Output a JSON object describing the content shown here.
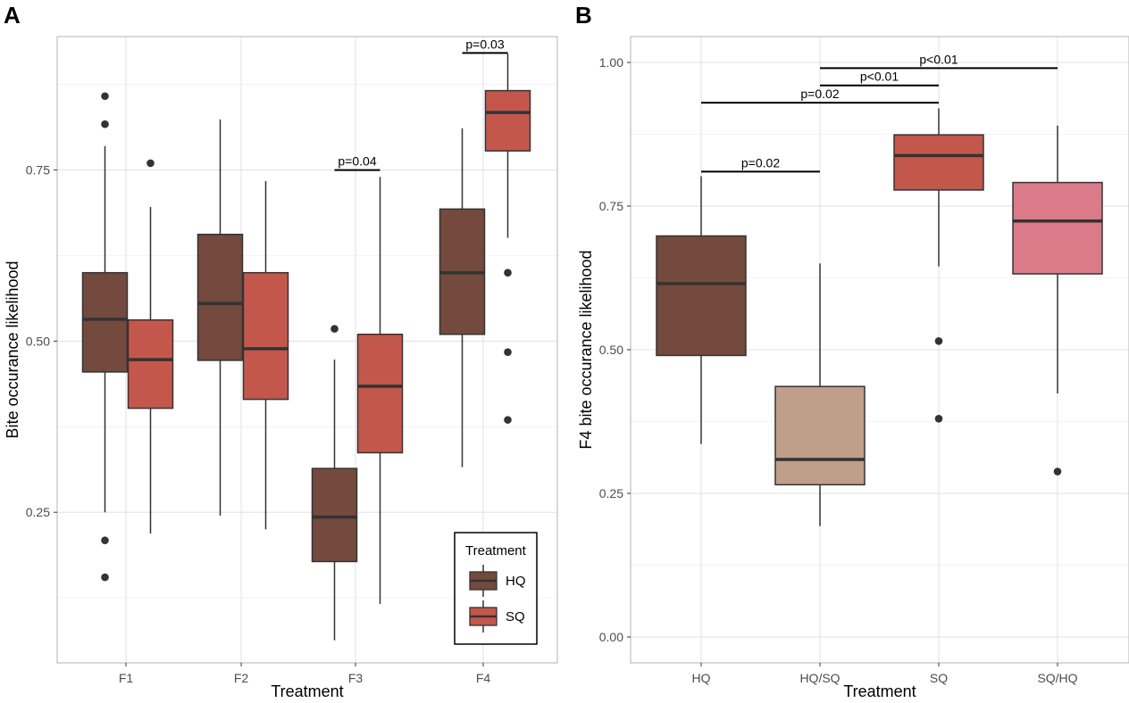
{
  "chart_data": [
    {
      "type": "boxplot",
      "panel_label": "A",
      "xlabel": "Treatment",
      "ylabel": "Bite occurance likelihood",
      "ylim": [
        0.03,
        0.945
      ],
      "yticks": [
        0.25,
        0.5,
        0.75
      ],
      "ytick_labels": [
        "0.25",
        "0.50",
        "0.75"
      ],
      "categories": [
        "F1",
        "F2",
        "F3",
        "F4"
      ],
      "grid": true,
      "legend": {
        "title": "Treatment",
        "position": "bottom-right",
        "entries": [
          {
            "label": "HQ",
            "color": "#734a3d"
          },
          {
            "label": "SQ",
            "color": "#c4574c"
          }
        ]
      },
      "boxes": [
        {
          "name": "F1-HQ",
          "category": "F1",
          "group": "HQ",
          "color": "#734a3d",
          "whisker_low": 0.25,
          "q1": 0.455,
          "median": 0.532,
          "q3": 0.6,
          "whisker_high": 0.785,
          "outliers": [
            0.858,
            0.817,
            0.209,
            0.155
          ]
        },
        {
          "name": "F1-SQ",
          "category": "F1",
          "group": "SQ",
          "color": "#c4574c",
          "whisker_low": 0.219,
          "q1": 0.402,
          "median": 0.473,
          "q3": 0.531,
          "whisker_high": 0.696,
          "outliers": [
            0.76
          ]
        },
        {
          "name": "F2-HQ",
          "category": "F2",
          "group": "HQ",
          "color": "#734a3d",
          "whisker_low": 0.245,
          "q1": 0.472,
          "median": 0.555,
          "q3": 0.656,
          "whisker_high": 0.824,
          "outliers": []
        },
        {
          "name": "F2-SQ",
          "category": "F2",
          "group": "SQ",
          "color": "#c4574c",
          "whisker_low": 0.225,
          "q1": 0.415,
          "median": 0.489,
          "q3": 0.6,
          "whisker_high": 0.734,
          "outliers": []
        },
        {
          "name": "F3-HQ",
          "category": "F3",
          "group": "HQ",
          "color": "#734a3d",
          "whisker_low": 0.063,
          "q1": 0.178,
          "median": 0.243,
          "q3": 0.314,
          "whisker_high": 0.473,
          "outliers": [
            0.518
          ]
        },
        {
          "name": "F3-SQ",
          "category": "F3",
          "group": "SQ",
          "color": "#c4574c",
          "whisker_low": 0.116,
          "q1": 0.337,
          "median": 0.434,
          "q3": 0.51,
          "whisker_high": 0.74,
          "outliers": []
        },
        {
          "name": "F4-HQ",
          "category": "F4",
          "group": "HQ",
          "color": "#734a3d",
          "whisker_low": 0.316,
          "q1": 0.51,
          "median": 0.6,
          "q3": 0.693,
          "whisker_high": 0.811,
          "outliers": []
        },
        {
          "name": "F4-SQ",
          "category": "F4",
          "group": "SQ",
          "color": "#c4574c",
          "whisker_low": 0.651,
          "q1": 0.778,
          "median": 0.834,
          "q3": 0.866,
          "whisker_high": 0.92,
          "outliers": [
            0.6,
            0.484,
            0.385
          ]
        }
      ],
      "annotations": [
        {
          "label": "p=0.04",
          "from": "F3-HQ",
          "to": "F3-SQ",
          "y": 0.75
        },
        {
          "label": "p=0.03",
          "from": "F4-HQ",
          "to": "F4-SQ",
          "y": 0.921
        }
      ]
    },
    {
      "type": "boxplot",
      "panel_label": "B",
      "xlabel": "Treatment",
      "ylabel": "F4 bite occurance likelihood",
      "ylim": [
        -0.045,
        1.045
      ],
      "yticks": [
        0.0,
        0.25,
        0.5,
        0.75,
        1.0
      ],
      "ytick_labels": [
        "0.00",
        "0.25",
        "0.50",
        "0.75",
        "1.00"
      ],
      "categories": [
        "HQ",
        "HQ/SQ",
        "SQ",
        "SQ/HQ"
      ],
      "grid": true,
      "boxes": [
        {
          "name": "HQ",
          "category": "HQ",
          "color": "#734a3d",
          "whisker_low": 0.336,
          "q1": 0.49,
          "median": 0.615,
          "q3": 0.698,
          "whisker_high": 0.802,
          "outliers": []
        },
        {
          "name": "HQ/SQ",
          "category": "HQ/SQ",
          "color": "#bf9e8a",
          "whisker_low": 0.193,
          "q1": 0.265,
          "median": 0.309,
          "q3": 0.436,
          "whisker_high": 0.65,
          "outliers": []
        },
        {
          "name": "SQ",
          "category": "SQ",
          "color": "#c4574c",
          "whisker_low": 0.645,
          "q1": 0.778,
          "median": 0.838,
          "q3": 0.874,
          "whisker_high": 0.92,
          "outliers": [
            0.515,
            0.38
          ]
        },
        {
          "name": "SQ/HQ",
          "category": "SQ/HQ",
          "color": "#db7a88",
          "whisker_low": 0.424,
          "q1": 0.632,
          "median": 0.724,
          "q3": 0.791,
          "whisker_high": 0.89,
          "outliers": [
            0.288
          ]
        }
      ],
      "annotations": [
        {
          "label": "p=0.02",
          "from": "HQ",
          "to": "HQ/SQ",
          "y": 0.81
        },
        {
          "label": "p=0.02",
          "from": "HQ",
          "to": "SQ",
          "y": 0.93
        },
        {
          "label": "p<0.01",
          "from": "HQ/SQ",
          "to": "SQ",
          "y": 0.96
        },
        {
          "label": "p<0.01",
          "from": "HQ/SQ",
          "to": "SQ/HQ",
          "y": 0.99
        }
      ]
    }
  ]
}
